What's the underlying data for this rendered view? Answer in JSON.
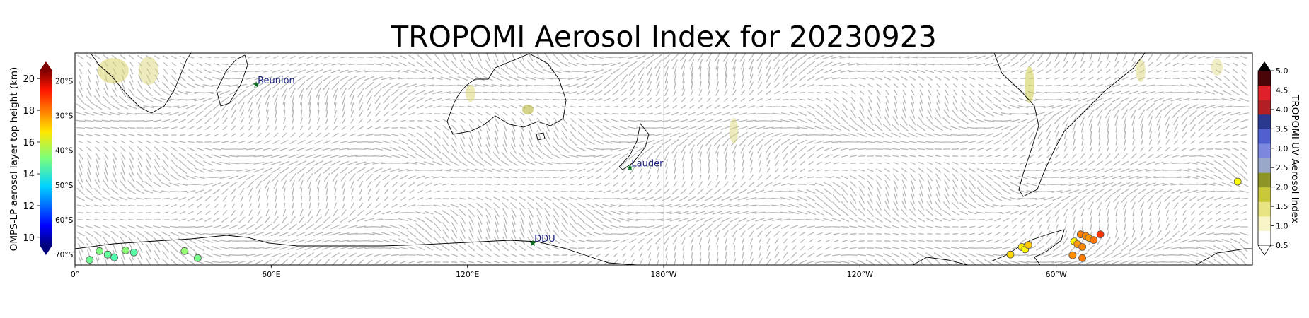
{
  "title": "TROPOMI Aerosol Index for 20230923",
  "map": {
    "lon_ticks": [
      "0°",
      "60°E",
      "120°E",
      "180°W",
      "120°W",
      "60°W"
    ],
    "lat_ticks": [
      "20°S",
      "30°S",
      "40°S",
      "50°S",
      "60°S",
      "70°S"
    ],
    "stations": [
      {
        "name": "Reunion",
        "lon": 55.4,
        "lat": -21.1
      },
      {
        "name": "Lauder",
        "lon": 169.7,
        "lat": -45.0
      },
      {
        "name": "DDU",
        "lon": 140.0,
        "lat": -66.7
      }
    ]
  },
  "left_colorbar": {
    "label": "OMPS-LP aerosol layer top height (km)",
    "ticks": [
      "10",
      "12",
      "14",
      "16",
      "18",
      "20"
    ],
    "min": 9.5,
    "max": 20.5,
    "colormap": "jet"
  },
  "right_colorbar": {
    "label": "TROPOMI UV Aerosol Index",
    "ticks": [
      "0.5",
      "1.0",
      "1.5",
      "2.0",
      "2.5",
      "3.0",
      "3.5",
      "4.0",
      "4.5",
      "5.0"
    ],
    "min": 0.5,
    "max": 5.0,
    "colors": [
      "#ffffff",
      "#f7f5c8",
      "#e8e483",
      "#c9c73a",
      "#8e9528",
      "#9aa7c9",
      "#7c87e0",
      "#5060cf",
      "#2b3890",
      "#b21f24",
      "#e0202a",
      "#4a0508"
    ]
  },
  "omps_points": [
    {
      "lon": 4.5,
      "lat": -71.5,
      "height": 14.8
    },
    {
      "lon": 7.5,
      "lat": -69.0,
      "height": 15.0
    },
    {
      "lon": 10.0,
      "lat": -70.0,
      "height": 14.7
    },
    {
      "lon": 12.0,
      "lat": -70.8,
      "height": 14.5
    },
    {
      "lon": 15.5,
      "lat": -68.8,
      "height": 15.1
    },
    {
      "lon": 18.0,
      "lat": -69.4,
      "height": 14.6
    },
    {
      "lon": 33.5,
      "lat": -69.0,
      "height": 15.2
    },
    {
      "lon": 37.5,
      "lat": -71.0,
      "height": 14.9
    },
    {
      "lon": 286.0,
      "lat": -70.0,
      "height": 16.8
    },
    {
      "lon": 289.5,
      "lat": -67.8,
      "height": 16.6
    },
    {
      "lon": 290.5,
      "lat": -68.5,
      "height": 16.4
    },
    {
      "lon": 291.5,
      "lat": -67.2,
      "height": 17.0
    },
    {
      "lon": 305.0,
      "lat": -70.2,
      "height": 17.6
    },
    {
      "lon": 305.5,
      "lat": -66.2,
      "height": 16.5
    },
    {
      "lon": 306.5,
      "lat": -67.0,
      "height": 17.4
    },
    {
      "lon": 307.5,
      "lat": -64.2,
      "height": 17.8
    },
    {
      "lon": 308.0,
      "lat": -67.8,
      "height": 17.6
    },
    {
      "lon": 308.0,
      "lat": -71.0,
      "height": 17.8
    },
    {
      "lon": 309.0,
      "lat": -64.6,
      "height": 17.7
    },
    {
      "lon": 310.0,
      "lat": -65.2,
      "height": 17.5
    },
    {
      "lon": 311.5,
      "lat": -65.8,
      "height": 17.9
    },
    {
      "lon": 313.5,
      "lat": -64.2,
      "height": 18.6
    },
    {
      "lon": 355.5,
      "lat": -49.0,
      "height": 16.3
    }
  ]
}
